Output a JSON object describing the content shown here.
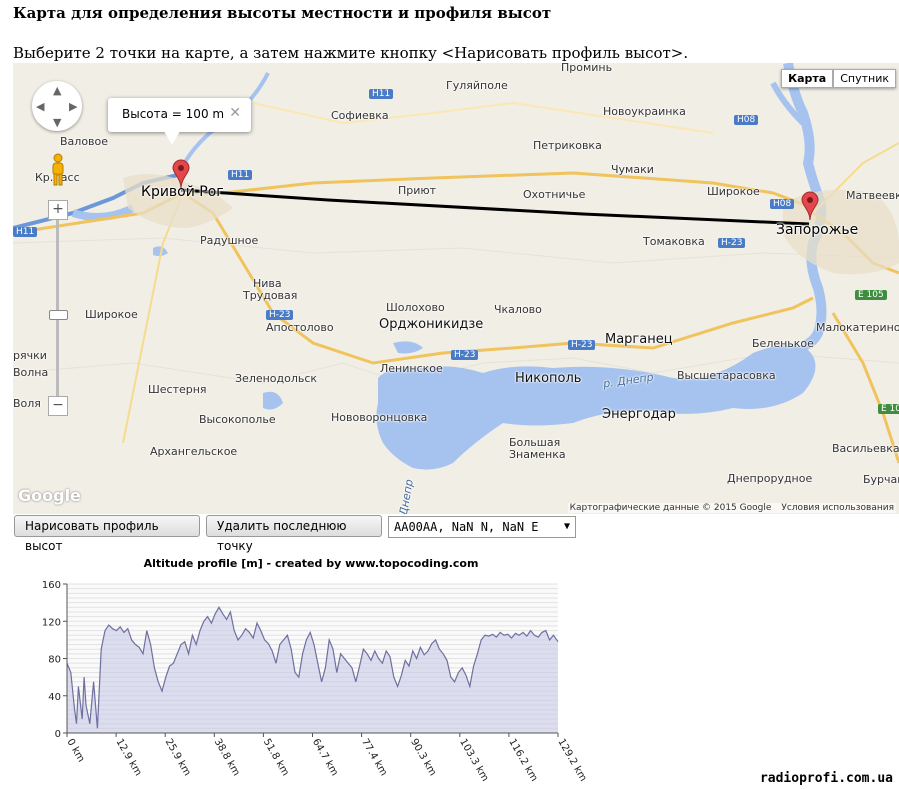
{
  "page": {
    "heading": "Карта для определения высоты местности и профиля высот",
    "instruction": "Выберите 2 точки на карте, а затем нажмите кнопку <Нарисовать профиль высот>."
  },
  "map": {
    "type_control": {
      "map": "Карта",
      "satellite": "Спутник"
    },
    "popup": {
      "text": "Высота = 100 m",
      "close": "✕"
    },
    "logo": "Google",
    "copyright": "Картографические данные © 2015 Google",
    "terms": "Условия использования",
    "labels": {
      "kryvyi_rih": "Кривой Рог",
      "zaporozhye": "Запорожье",
      "nikopol": "Никополь",
      "marganets": "Марганец",
      "energodar": "Энергодар",
      "ordzhonikidze": "Орджоникидзе",
      "valovoe": "Валовое",
      "krasnoe": "Кр…асс",
      "sofievka": "Софиевка",
      "gulyaipole": "Гуляйполе",
      "gulyaipole_ru": "Гуляйполе",
      "promin": "Проминь",
      "novoukrainka": "Новоукраинка",
      "petrikovka": "Петриковка",
      "chumaki": "Чумаки",
      "priyut": "Приют",
      "okhotniche": "Охотничье",
      "shirokoe_e": "Широкое",
      "matveevka": "Матвеевка",
      "radushnoe": "Радушное",
      "tomakovka": "Томаковка",
      "niva": "Нива",
      "trudovaya": "Трудовая",
      "shirokoe_w": "Широкое",
      "sholokhovo": "Шолохово",
      "chkalovo": "Чкалово",
      "apostolovo": "Апостолово",
      "malokaterinovka": "Малокатериновка",
      "belenkoe": "Беленькое",
      "ryazhki": "рячки",
      "volna": "Волна",
      "zelenodolsk": "Зеленодольск",
      "leninskoe": "Ленинское",
      "shesternya": "Шестерня",
      "vysshetarasovka": "Высшетарасовка",
      "vysokopole": "Высокополье",
      "novovorontsovka": "Нововоронцовка",
      "arkhangelskoe": "Архангельское",
      "bolshaya_znamenka": "Большая Знаменка",
      "vasilevka": "Васильевка",
      "dneprorudnoe": "Днепрорудное",
      "burchak": "Бурчак",
      "dnepr_river": "р. Днепр",
      "dnepr_vert": "Днепр",
      "volya": "Воля"
    },
    "roads": {
      "h11_a": "H11",
      "h11_b": "H11",
      "h11_c": "H11",
      "h08_a": "H08",
      "h08_b": "H08",
      "h23_a": "H-23",
      "h23_b": "H-23",
      "h23_c": "H-23",
      "h23_d": "H-23",
      "e105_a": "E 105",
      "e105_b": "E 105"
    }
  },
  "controls": {
    "draw_button": "Нарисовать профиль высот",
    "delete_button": "Удалить последнюю точку",
    "coord_select": "AA00AA, NaN N, NaN E"
  },
  "watermark": "radioprofi.com.ua",
  "chart_data": {
    "type": "area",
    "title": "Altitude profile [m] - created by www.topocoding.com",
    "xlabel": "",
    "ylabel": "",
    "x_unit": "km",
    "xlim": [
      0,
      129.2
    ],
    "ylim": [
      0,
      160
    ],
    "y_ticks": [
      0,
      40,
      80,
      120,
      160
    ],
    "x_ticks": [
      "0 km",
      "12.9 km",
      "25.9 km",
      "38.8 km",
      "51.8 km",
      "64.7 km",
      "77.4 km",
      "90.3 km",
      "103.3 km",
      "116.2 km",
      "129.2 km"
    ],
    "grid": true,
    "colors": {
      "line": "#6f6fa0",
      "fill": "#c8cae6"
    },
    "x": [
      0,
      1,
      2,
      2.5,
      3,
      4,
      4.5,
      5,
      6,
      7,
      8,
      9,
      10,
      11,
      12,
      13,
      14,
      15,
      16,
      17,
      18,
      19,
      20,
      21,
      22,
      23,
      24,
      25,
      26,
      27,
      28,
      29,
      30,
      31,
      32,
      33,
      34,
      35,
      36,
      37,
      38,
      39,
      40,
      41,
      42,
      43,
      44,
      45,
      46,
      47,
      48,
      49,
      50,
      51,
      52,
      53,
      54,
      55,
      56,
      57,
      58,
      59,
      60,
      61,
      62,
      63,
      64,
      65,
      66,
      67,
      68,
      69,
      70,
      71,
      72,
      73,
      74,
      75,
      76,
      77,
      78,
      79,
      80,
      81,
      82,
      83,
      84,
      85,
      86,
      87,
      88,
      89,
      90,
      91,
      92,
      93,
      94,
      95,
      96,
      97,
      98,
      99,
      100,
      101,
      102,
      103,
      104,
      105,
      106,
      107,
      108,
      109,
      110,
      111,
      112,
      113,
      114,
      115,
      116,
      117,
      118,
      119,
      120,
      121,
      122,
      123,
      124,
      125,
      126,
      127,
      128,
      129.2
    ],
    "values": [
      75,
      65,
      25,
      10,
      50,
      15,
      60,
      30,
      10,
      55,
      5,
      90,
      110,
      116,
      112,
      110,
      114,
      108,
      112,
      100,
      95,
      92,
      85,
      110,
      95,
      70,
      55,
      45,
      60,
      72,
      75,
      85,
      95,
      98,
      85,
      105,
      95,
      110,
      120,
      125,
      118,
      128,
      135,
      128,
      122,
      130,
      110,
      100,
      105,
      112,
      108,
      102,
      118,
      110,
      100,
      96,
      88,
      75,
      95,
      100,
      105,
      90,
      65,
      60,
      85,
      100,
      108,
      95,
      75,
      55,
      70,
      100,
      90,
      65,
      85,
      80,
      75,
      70,
      55,
      72,
      90,
      85,
      78,
      88,
      80,
      75,
      88,
      82,
      60,
      50,
      62,
      78,
      72,
      88,
      80,
      92,
      84,
      88,
      96,
      100,
      90,
      85,
      78,
      60,
      55,
      65,
      70,
      62,
      50,
      72,
      85,
      100,
      105,
      104,
      106,
      103,
      108,
      105,
      106,
      102,
      107,
      105,
      108,
      104,
      110,
      105,
      103,
      108,
      110,
      100,
      105,
      98
    ]
  }
}
